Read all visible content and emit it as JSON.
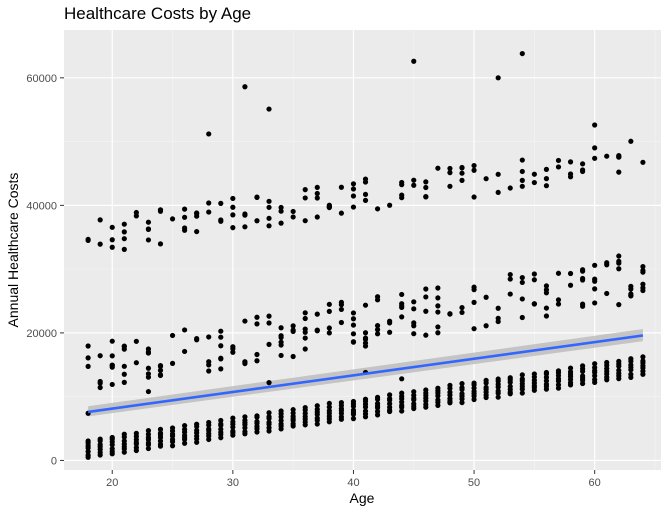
{
  "chart_data": {
    "type": "scatter",
    "title": "Healthcare Costs by Age",
    "xlabel": "Age",
    "ylabel": "Annual Healthcare Costs",
    "xlim": [
      16,
      65.5
    ],
    "ylim": [
      -1500,
      67500
    ],
    "x_ticks": [
      20,
      30,
      40,
      50,
      60
    ],
    "y_ticks": [
      0,
      20000,
      40000,
      60000
    ],
    "x_tick_labels": [
      "20",
      "30",
      "40",
      "50",
      "60"
    ],
    "y_tick_labels": [
      "0",
      "20000",
      "40000",
      "60000"
    ],
    "grid": true,
    "background": "#ebebeb",
    "point_color": "#000000",
    "trend_color": "#3366ff",
    "band_color": "#bdbdbd",
    "trend_line": {
      "x": [
        18,
        64
      ],
      "y": [
        7600,
        19600
      ],
      "band_low": [
        6900,
        18700
      ],
      "band_high": [
        8500,
        20600
      ]
    },
    "bands": {
      "low": {
        "x_start": 18,
        "x_end": 64,
        "y_start": 1800,
        "y_end": 14800,
        "spread": 3000
      },
      "mid": {
        "x_start": 18,
        "x_end": 64,
        "y_start": 14000,
        "y_end": 28000,
        "spread": 13000
      },
      "high": {
        "x_start": 18,
        "x_end": 64,
        "y_start": 35000,
        "y_end": 48000,
        "spread": 8000
      }
    },
    "outliers": [
      {
        "x": 28,
        "y": 51200
      },
      {
        "x": 31,
        "y": 58600
      },
      {
        "x": 33,
        "y": 55100
      },
      {
        "x": 45,
        "y": 62600
      },
      {
        "x": 52,
        "y": 60000
      },
      {
        "x": 54,
        "y": 63800
      },
      {
        "x": 60,
        "y": 52600
      },
      {
        "x": 18,
        "y": 7400
      },
      {
        "x": 44,
        "y": 12800
      },
      {
        "x": 41,
        "y": 13800
      },
      {
        "x": 33,
        "y": 12200
      },
      {
        "x": 23,
        "y": 10800
      }
    ]
  }
}
